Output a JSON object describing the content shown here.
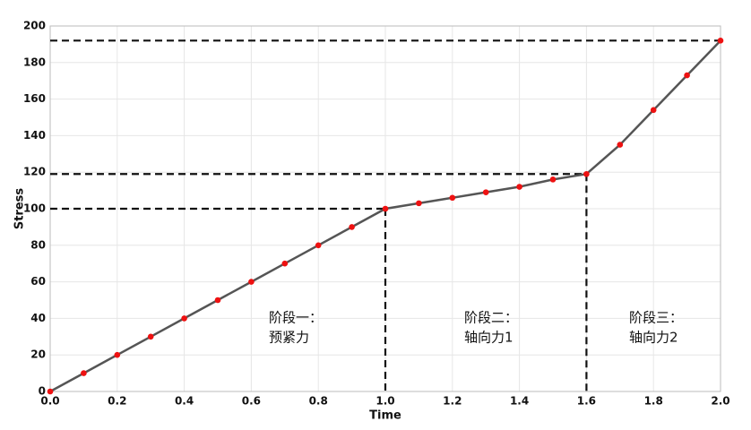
{
  "chart_data": {
    "type": "line",
    "x_label": "Time",
    "y_label": "Stress",
    "x": [
      0.0,
      0.1,
      0.2,
      0.3,
      0.4,
      0.5,
      0.6,
      0.7,
      0.8,
      0.9,
      1.0,
      1.1,
      1.2,
      1.3,
      1.4,
      1.5,
      1.6,
      1.7,
      1.8,
      1.9,
      2.0
    ],
    "series": [
      {
        "color": "#555555",
        "marker_color": "#ee1111",
        "values": [
          0,
          10,
          20,
          30,
          40,
          50,
          60,
          70,
          80,
          90,
          100,
          103,
          106,
          109,
          112,
          116,
          119,
          135,
          154,
          173,
          192
        ]
      }
    ],
    "guides": [
      {
        "x": 1.0,
        "y": 100
      },
      {
        "x": 1.6,
        "y": 119
      },
      {
        "x": 2.0,
        "y": 192
      }
    ],
    "annotations": [
      {
        "lines": [
          "阶段一：",
          "预紧力"
        ]
      },
      {
        "lines": [
          "阶段二：",
          "轴向力1"
        ]
      },
      {
        "lines": [
          "阶段三：",
          "轴向力2"
        ]
      }
    ],
    "xlim": [
      0,
      2
    ],
    "ylim": [
      0,
      200
    ],
    "xticks": [
      {
        "value": 0,
        "label": "0.0"
      },
      0.2,
      0.4,
      0.6,
      0.8,
      {
        "value": 1,
        "label": "1.0"
      },
      1.2,
      1.4,
      1.6,
      1.8,
      {
        "value": 2,
        "label": "2.0"
      }
    ],
    "yticks": [
      0,
      20,
      40,
      60,
      80,
      100,
      120,
      140,
      160,
      180,
      200
    ],
    "grid": true
  }
}
